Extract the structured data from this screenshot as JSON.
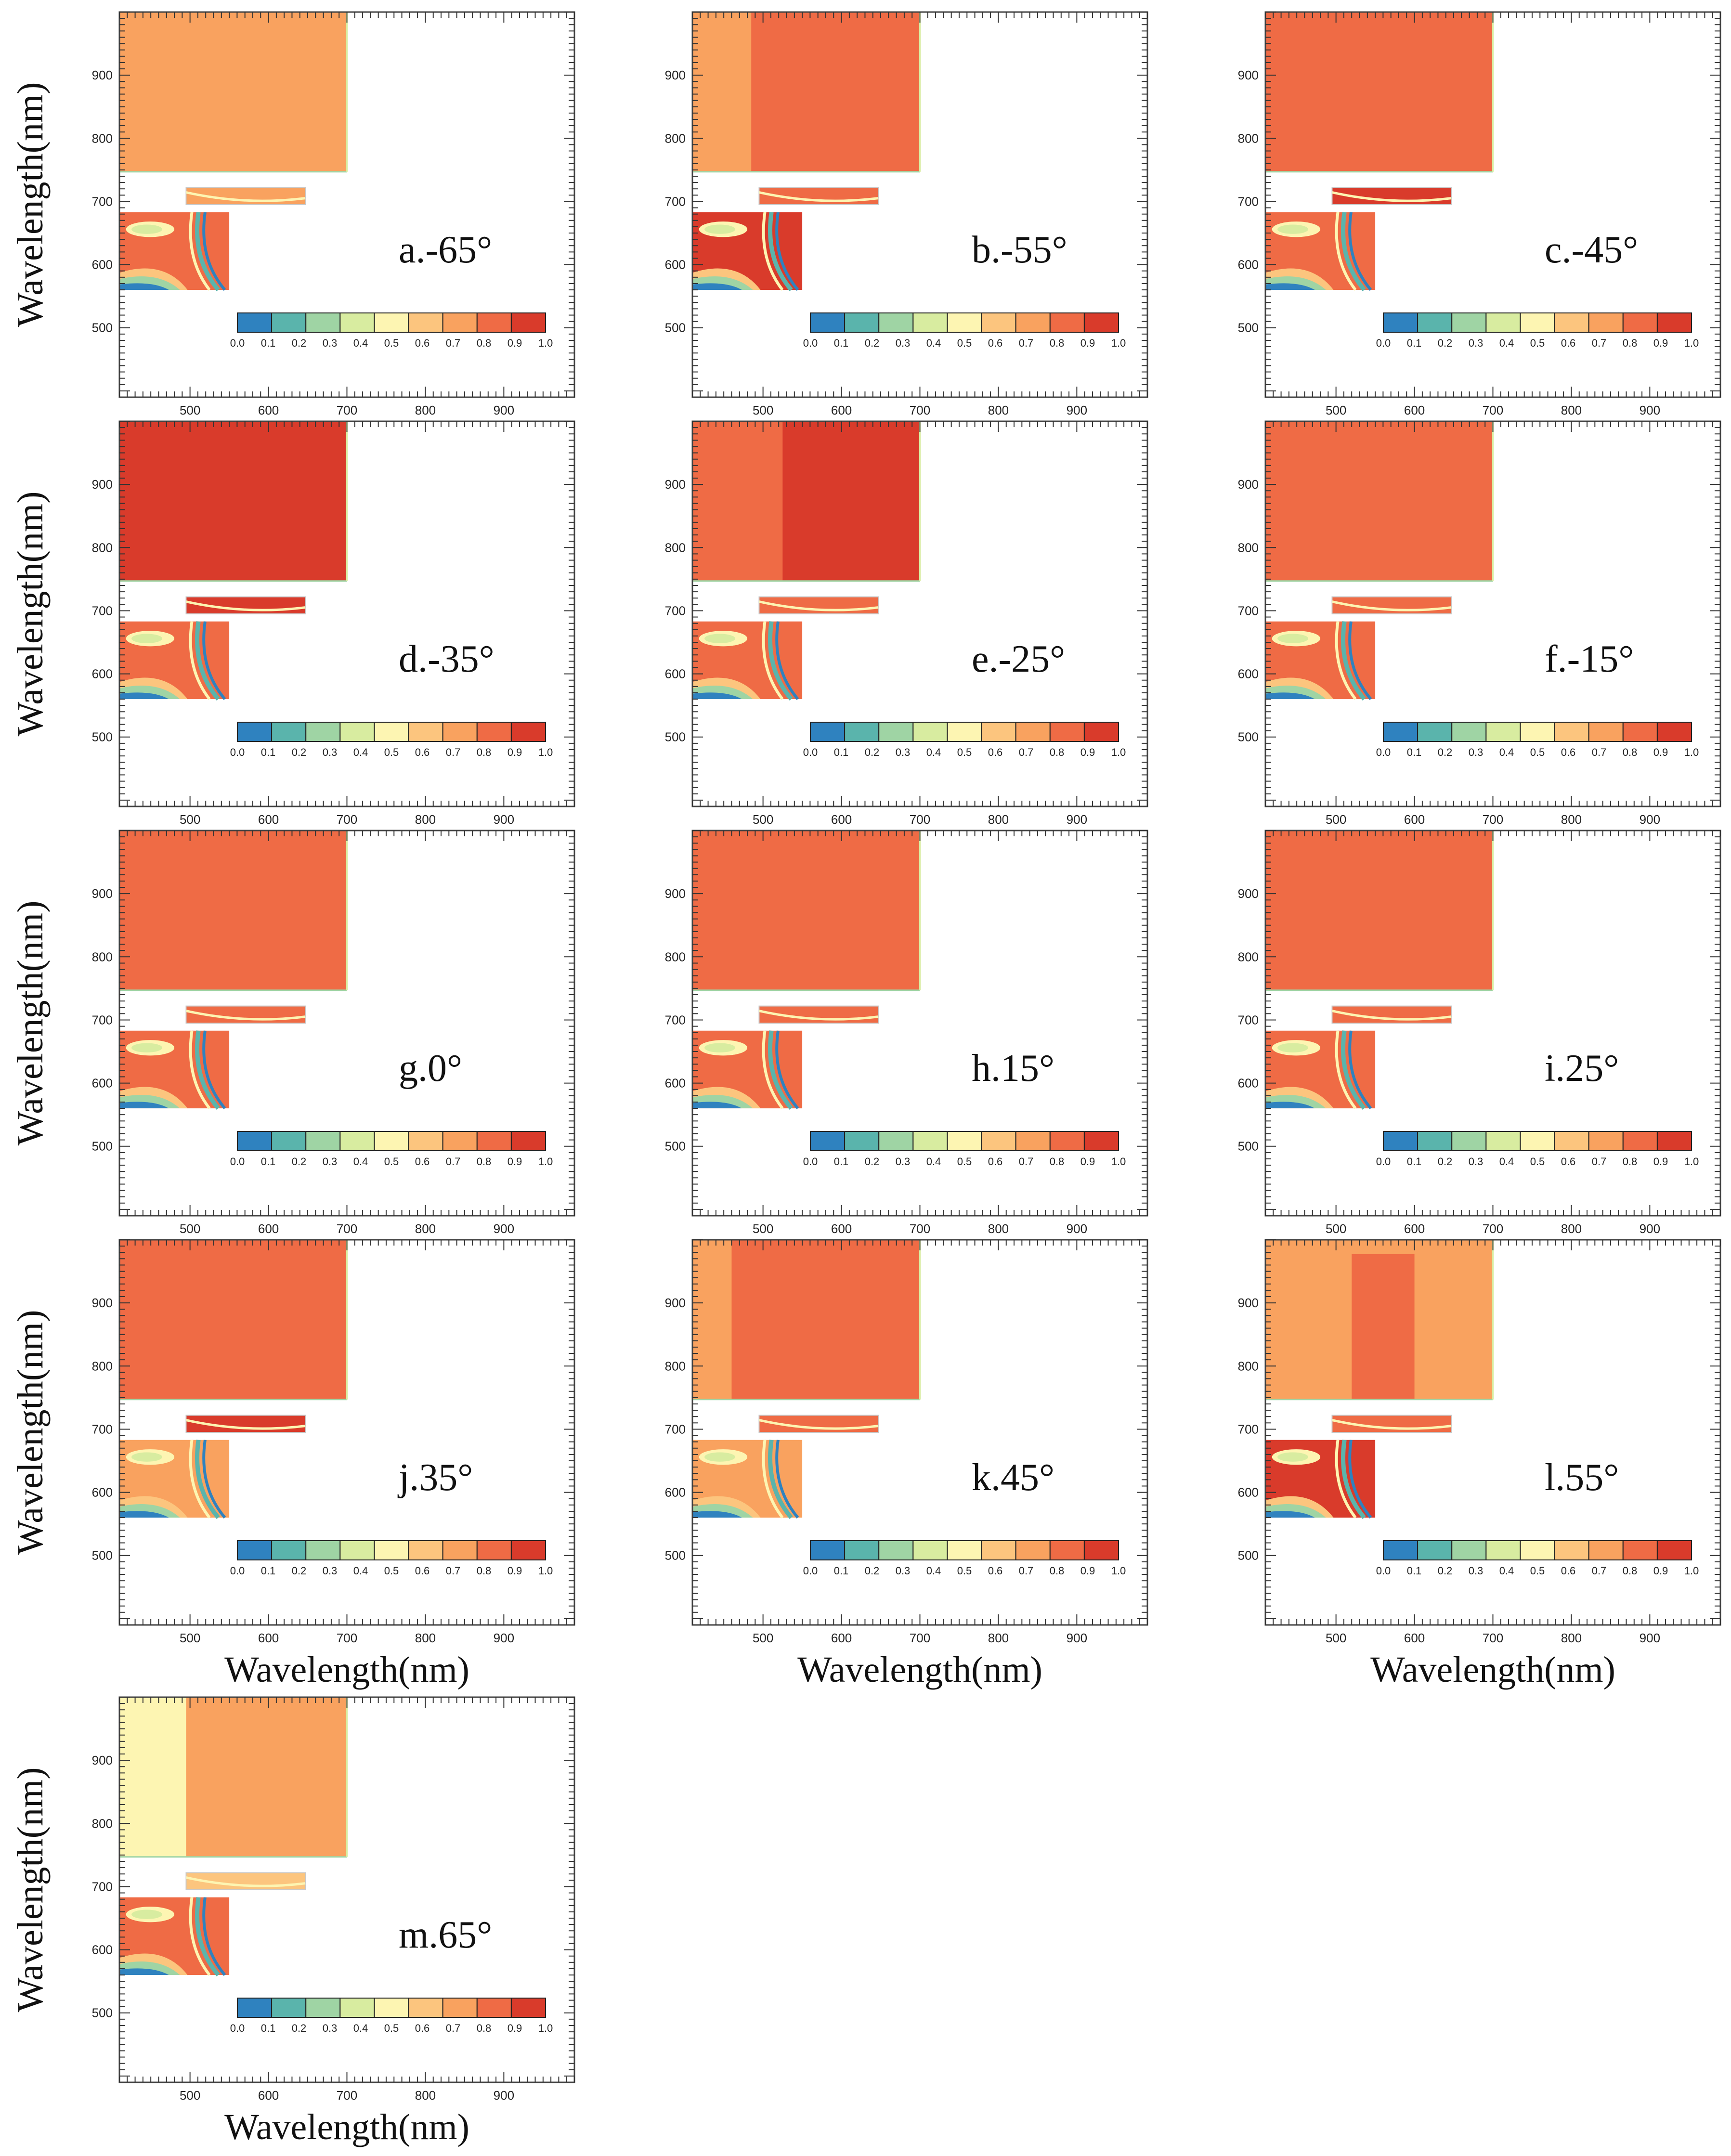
{
  "figure": {
    "xlabel": "Wavelength(nm)",
    "ylabel": "Wavelength(nm)"
  },
  "colors": {
    "scale": [
      "#2f82bf",
      "#5ab4ac",
      "#9fd4a4",
      "#d8eca0",
      "#fdf5b2",
      "#fcc57e",
      "#f9a25f",
      "#ef6b45",
      "#d93b2b"
    ],
    "frame": "#444444"
  },
  "chart_data": [
    {
      "type": "heatmap",
      "label": "a.-65°",
      "angle": -65,
      "xlabel": "",
      "ylabel": "Wavelength(nm)",
      "xlim": [
        410,
        990
      ],
      "ylim": [
        390,
        1000
      ],
      "xticks": [
        "500",
        "600",
        "700",
        "800",
        "900"
      ],
      "yticks": [
        "500",
        "600",
        "700",
        "800",
        "900"
      ],
      "colorbar": [
        "0.0",
        "0.1",
        "0.2",
        "0.3",
        "0.4",
        "0.5",
        "0.6",
        "0.7",
        "0.8",
        "0.9",
        "1.0"
      ],
      "big_block": {
        "x": [
          410,
          700
        ],
        "y": [
          747,
          1000
        ],
        "value": 0.65,
        "left_value": 0.65,
        "split_x": 410
      },
      "strip_value": 0.7,
      "lower_block_dominant": 0.8
    },
    {
      "type": "heatmap",
      "label": "b.-55°",
      "angle": -55,
      "xlabel": "",
      "ylabel": "",
      "xlim": [
        410,
        990
      ],
      "ylim": [
        390,
        1000
      ],
      "xticks": [
        "500",
        "600",
        "700",
        "800",
        "900"
      ],
      "yticks": [
        "500",
        "600",
        "700",
        "800",
        "900"
      ],
      "colorbar": [
        "0.0",
        "0.1",
        "0.2",
        "0.3",
        "0.4",
        "0.5",
        "0.6",
        "0.7",
        "0.8",
        "0.9",
        "1.0"
      ],
      "big_block": {
        "x": [
          410,
          700
        ],
        "y": [
          747,
          1000
        ],
        "value": 0.75,
        "left_value": 0.65,
        "split_x": 485
      },
      "strip_value": 0.75,
      "lower_block_dominant": 0.85
    },
    {
      "type": "heatmap",
      "label": "c.-45°",
      "angle": -45,
      "xlabel": "",
      "ylabel": "",
      "xlim": [
        410,
        990
      ],
      "ylim": [
        390,
        1000
      ],
      "xticks": [
        "500",
        "600",
        "700",
        "800",
        "900"
      ],
      "yticks": [
        "500",
        "600",
        "700",
        "800",
        "900"
      ],
      "colorbar": [
        "0.0",
        "0.1",
        "0.2",
        "0.3",
        "0.4",
        "0.5",
        "0.6",
        "0.7",
        "0.8",
        "0.9",
        "1.0"
      ],
      "big_block": {
        "x": [
          410,
          700
        ],
        "y": [
          747,
          1000
        ],
        "value": 0.75,
        "left_value": 0.75,
        "split_x": 410
      },
      "strip_value": 0.85,
      "lower_block_dominant": 0.8
    },
    {
      "type": "heatmap",
      "label": "d.-35°",
      "angle": -35,
      "xlabel": "",
      "ylabel": "Wavelength(nm)",
      "xlim": [
        410,
        990
      ],
      "ylim": [
        390,
        1000
      ],
      "xticks": [
        "500",
        "600",
        "700",
        "800",
        "900"
      ],
      "yticks": [
        "500",
        "600",
        "700",
        "800",
        "900"
      ],
      "colorbar": [
        "0.0",
        "0.1",
        "0.2",
        "0.3",
        "0.4",
        "0.5",
        "0.6",
        "0.7",
        "0.8",
        "0.9",
        "1.0"
      ],
      "big_block": {
        "x": [
          410,
          700
        ],
        "y": [
          747,
          1000
        ],
        "value": 0.85,
        "left_value": 0.85,
        "split_x": 410
      },
      "strip_value": 0.85,
      "lower_block_dominant": 0.75
    },
    {
      "type": "heatmap",
      "label": "e.-25°",
      "angle": -25,
      "xlabel": "",
      "ylabel": "",
      "xlim": [
        410,
        990
      ],
      "ylim": [
        390,
        1000
      ],
      "xticks": [
        "500",
        "600",
        "700",
        "800",
        "900"
      ],
      "yticks": [
        "500",
        "600",
        "700",
        "800",
        "900"
      ],
      "colorbar": [
        "0.0",
        "0.1",
        "0.2",
        "0.3",
        "0.4",
        "0.5",
        "0.6",
        "0.7",
        "0.8",
        "0.9",
        "1.0"
      ],
      "big_block": {
        "x": [
          410,
          700
        ],
        "y": [
          747,
          1000
        ],
        "value": 0.85,
        "left_value": 0.75,
        "split_x": 525
      },
      "strip_value": 0.8,
      "lower_block_dominant": 0.75
    },
    {
      "type": "heatmap",
      "label": "f.-15°",
      "angle": -15,
      "xlabel": "",
      "ylabel": "",
      "xlim": [
        410,
        990
      ],
      "ylim": [
        390,
        1000
      ],
      "xticks": [
        "500",
        "600",
        "700",
        "800",
        "900"
      ],
      "yticks": [
        "500",
        "600",
        "700",
        "800",
        "900"
      ],
      "colorbar": [
        "0.0",
        "0.1",
        "0.2",
        "0.3",
        "0.4",
        "0.5",
        "0.6",
        "0.7",
        "0.8",
        "0.9",
        "1.0"
      ],
      "big_block": {
        "x": [
          410,
          700
        ],
        "y": [
          747,
          1000
        ],
        "value": 0.75,
        "left_value": 0.75,
        "split_x": 410
      },
      "strip_value": 0.8,
      "lower_block_dominant": 0.75
    },
    {
      "type": "heatmap",
      "label": "g.0°",
      "angle": 0,
      "xlabel": "",
      "ylabel": "Wavelength(nm)",
      "xlim": [
        410,
        990
      ],
      "ylim": [
        390,
        1000
      ],
      "xticks": [
        "500",
        "600",
        "700",
        "800",
        "900"
      ],
      "yticks": [
        "500",
        "600",
        "700",
        "800",
        "900"
      ],
      "colorbar": [
        "0.0",
        "0.1",
        "0.2",
        "0.3",
        "0.4",
        "0.5",
        "0.6",
        "0.7",
        "0.8",
        "0.9",
        "1.0"
      ],
      "big_block": {
        "x": [
          410,
          700
        ],
        "y": [
          747,
          1000
        ],
        "value": 0.75,
        "left_value": 0.75,
        "split_x": 410
      },
      "strip_value": 0.8,
      "lower_block_dominant": 0.75
    },
    {
      "type": "heatmap",
      "label": "h.15°",
      "angle": 15,
      "xlabel": "",
      "ylabel": "",
      "xlim": [
        410,
        990
      ],
      "ylim": [
        390,
        1000
      ],
      "xticks": [
        "500",
        "600",
        "700",
        "800",
        "900"
      ],
      "yticks": [
        "500",
        "600",
        "700",
        "800",
        "900"
      ],
      "colorbar": [
        "0.0",
        "0.1",
        "0.2",
        "0.3",
        "0.4",
        "0.5",
        "0.6",
        "0.7",
        "0.8",
        "0.9",
        "1.0"
      ],
      "big_block": {
        "x": [
          410,
          700
        ],
        "y": [
          747,
          1000
        ],
        "value": 0.75,
        "left_value": 0.75,
        "split_x": 410
      },
      "strip_value": 0.8,
      "lower_block_dominant": 0.75
    },
    {
      "type": "heatmap",
      "label": "i.25°",
      "angle": 25,
      "xlabel": "",
      "ylabel": "",
      "xlim": [
        410,
        990
      ],
      "ylim": [
        390,
        1000
      ],
      "xticks": [
        "500",
        "600",
        "700",
        "800",
        "900"
      ],
      "yticks": [
        "500",
        "600",
        "700",
        "800",
        "900"
      ],
      "colorbar": [
        "0.0",
        "0.1",
        "0.2",
        "0.3",
        "0.4",
        "0.5",
        "0.6",
        "0.7",
        "0.8",
        "0.9",
        "1.0"
      ],
      "big_block": {
        "x": [
          410,
          700
        ],
        "y": [
          747,
          1000
        ],
        "value": 0.75,
        "left_value": 0.75,
        "split_x": 410
      },
      "strip_value": 0.8,
      "lower_block_dominant": 0.75
    },
    {
      "type": "heatmap",
      "label": "j.35°",
      "angle": 35,
      "xlabel": "Wavelength(nm)",
      "ylabel": "Wavelength(nm)",
      "xlim": [
        410,
        990
      ],
      "ylim": [
        390,
        1000
      ],
      "xticks": [
        "500",
        "600",
        "700",
        "800",
        "900"
      ],
      "yticks": [
        "500",
        "600",
        "700",
        "800",
        "900"
      ],
      "colorbar": [
        "0.0",
        "0.1",
        "0.2",
        "0.3",
        "0.4",
        "0.5",
        "0.6",
        "0.7",
        "0.8",
        "0.9",
        "1.0"
      ],
      "big_block": {
        "x": [
          410,
          700
        ],
        "y": [
          747,
          1000
        ],
        "value": 0.75,
        "left_value": 0.75,
        "split_x": 410
      },
      "strip_value": 0.85,
      "lower_block_dominant": 0.7
    },
    {
      "type": "heatmap",
      "label": "k.45°",
      "angle": 45,
      "xlabel": "Wavelength(nm)",
      "ylabel": "",
      "xlim": [
        410,
        990
      ],
      "ylim": [
        390,
        1000
      ],
      "xticks": [
        "500",
        "600",
        "700",
        "800",
        "900"
      ],
      "yticks": [
        "500",
        "600",
        "700",
        "800",
        "900"
      ],
      "colorbar": [
        "0.0",
        "0.1",
        "0.2",
        "0.3",
        "0.4",
        "0.5",
        "0.6",
        "0.7",
        "0.8",
        "0.9",
        "1.0"
      ],
      "big_block": {
        "x": [
          410,
          700
        ],
        "y": [
          747,
          1000
        ],
        "value": 0.75,
        "left_value": 0.65,
        "split_x": 460
      },
      "strip_value": 0.75,
      "lower_block_dominant": 0.65
    },
    {
      "type": "heatmap",
      "label": "l.55°",
      "angle": 55,
      "xlabel": "Wavelength(nm)",
      "ylabel": "",
      "xlim": [
        410,
        990
      ],
      "ylim": [
        390,
        1000
      ],
      "xticks": [
        "500",
        "600",
        "700",
        "800",
        "900"
      ],
      "yticks": [
        "500",
        "600",
        "700",
        "800",
        "900"
      ],
      "colorbar": [
        "0.0",
        "0.1",
        "0.2",
        "0.3",
        "0.4",
        "0.5",
        "0.6",
        "0.7",
        "0.8",
        "0.9",
        "1.0"
      ],
      "big_block": {
        "x": [
          410,
          700
        ],
        "y": [
          747,
          1000
        ],
        "value": 0.65,
        "left_value": 0.65,
        "split_x": 410,
        "band": [
          520,
          600
        ],
        "band_value": 0.75
      },
      "strip_value": 0.75,
      "lower_block_dominant": 0.85
    },
    {
      "type": "heatmap",
      "label": "m.65°",
      "angle": 65,
      "xlabel": "Wavelength(nm)",
      "ylabel": "Wavelength(nm)",
      "xlim": [
        410,
        990
      ],
      "ylim": [
        390,
        1000
      ],
      "xticks": [
        "500",
        "600",
        "700",
        "800",
        "900"
      ],
      "yticks": [
        "500",
        "600",
        "700",
        "800",
        "900"
      ],
      "colorbar": [
        "0.0",
        "0.1",
        "0.2",
        "0.3",
        "0.4",
        "0.5",
        "0.6",
        "0.7",
        "0.8",
        "0.9",
        "1.0"
      ],
      "big_block": {
        "x": [
          410,
          700
        ],
        "y": [
          747,
          1000
        ],
        "value": 0.65,
        "left_value": 0.45,
        "split_x": 495
      },
      "strip_value": 0.55,
      "lower_block_dominant": 0.75
    }
  ]
}
